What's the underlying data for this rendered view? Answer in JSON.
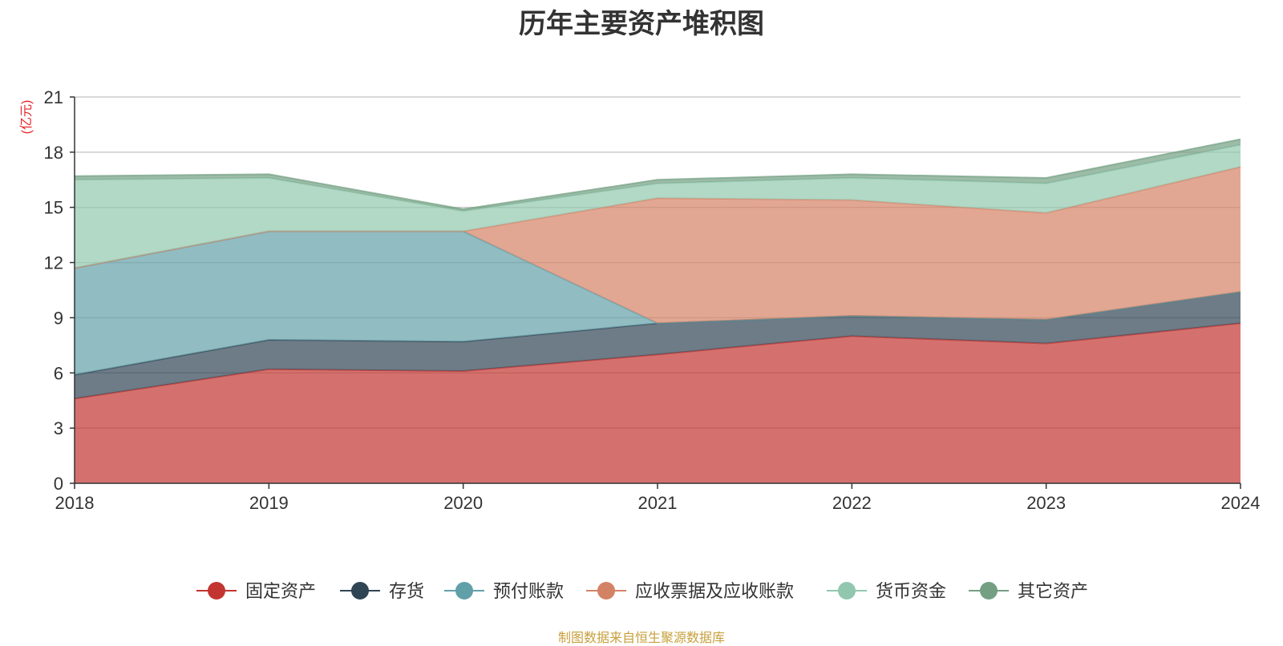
{
  "chart_data": {
    "type": "area",
    "stacked": true,
    "title": "历年主要资产堆积图",
    "unit_label": "(亿元)",
    "categories": [
      "2018",
      "2019",
      "2020",
      "2021",
      "2022",
      "2023",
      "2024"
    ],
    "ylim": [
      0,
      21
    ],
    "yticks": [
      0,
      3,
      6,
      9,
      12,
      15,
      18,
      21
    ],
    "grid": true,
    "legend_position": "bottom",
    "series": [
      {
        "name": "固定资产",
        "color": "#c23531",
        "values": [
          4.6,
          6.2,
          6.1,
          7.0,
          8.0,
          7.6,
          8.7
        ]
      },
      {
        "name": "存货",
        "color": "#2f4554",
        "values": [
          1.3,
          1.6,
          1.6,
          1.7,
          1.1,
          1.3,
          1.7
        ]
      },
      {
        "name": "预付账款",
        "color": "#61a0a8",
        "values": [
          5.8,
          5.9,
          6.0,
          0.0,
          0.0,
          0.0,
          0.0
        ]
      },
      {
        "name": "应收票据及应收账款",
        "color": "#d48265",
        "values": [
          0.0,
          0.0,
          0.0,
          6.8,
          6.3,
          5.8,
          6.8
        ]
      },
      {
        "name": "货币资金",
        "color": "#91c7ae",
        "values": [
          4.8,
          2.9,
          1.1,
          0.8,
          1.2,
          1.6,
          1.2
        ]
      },
      {
        "name": "其它资产",
        "color": "#749f83",
        "values": [
          0.2,
          0.2,
          0.1,
          0.2,
          0.2,
          0.3,
          0.3
        ]
      }
    ]
  },
  "footer": "制图数据来自恒生聚源数据库"
}
